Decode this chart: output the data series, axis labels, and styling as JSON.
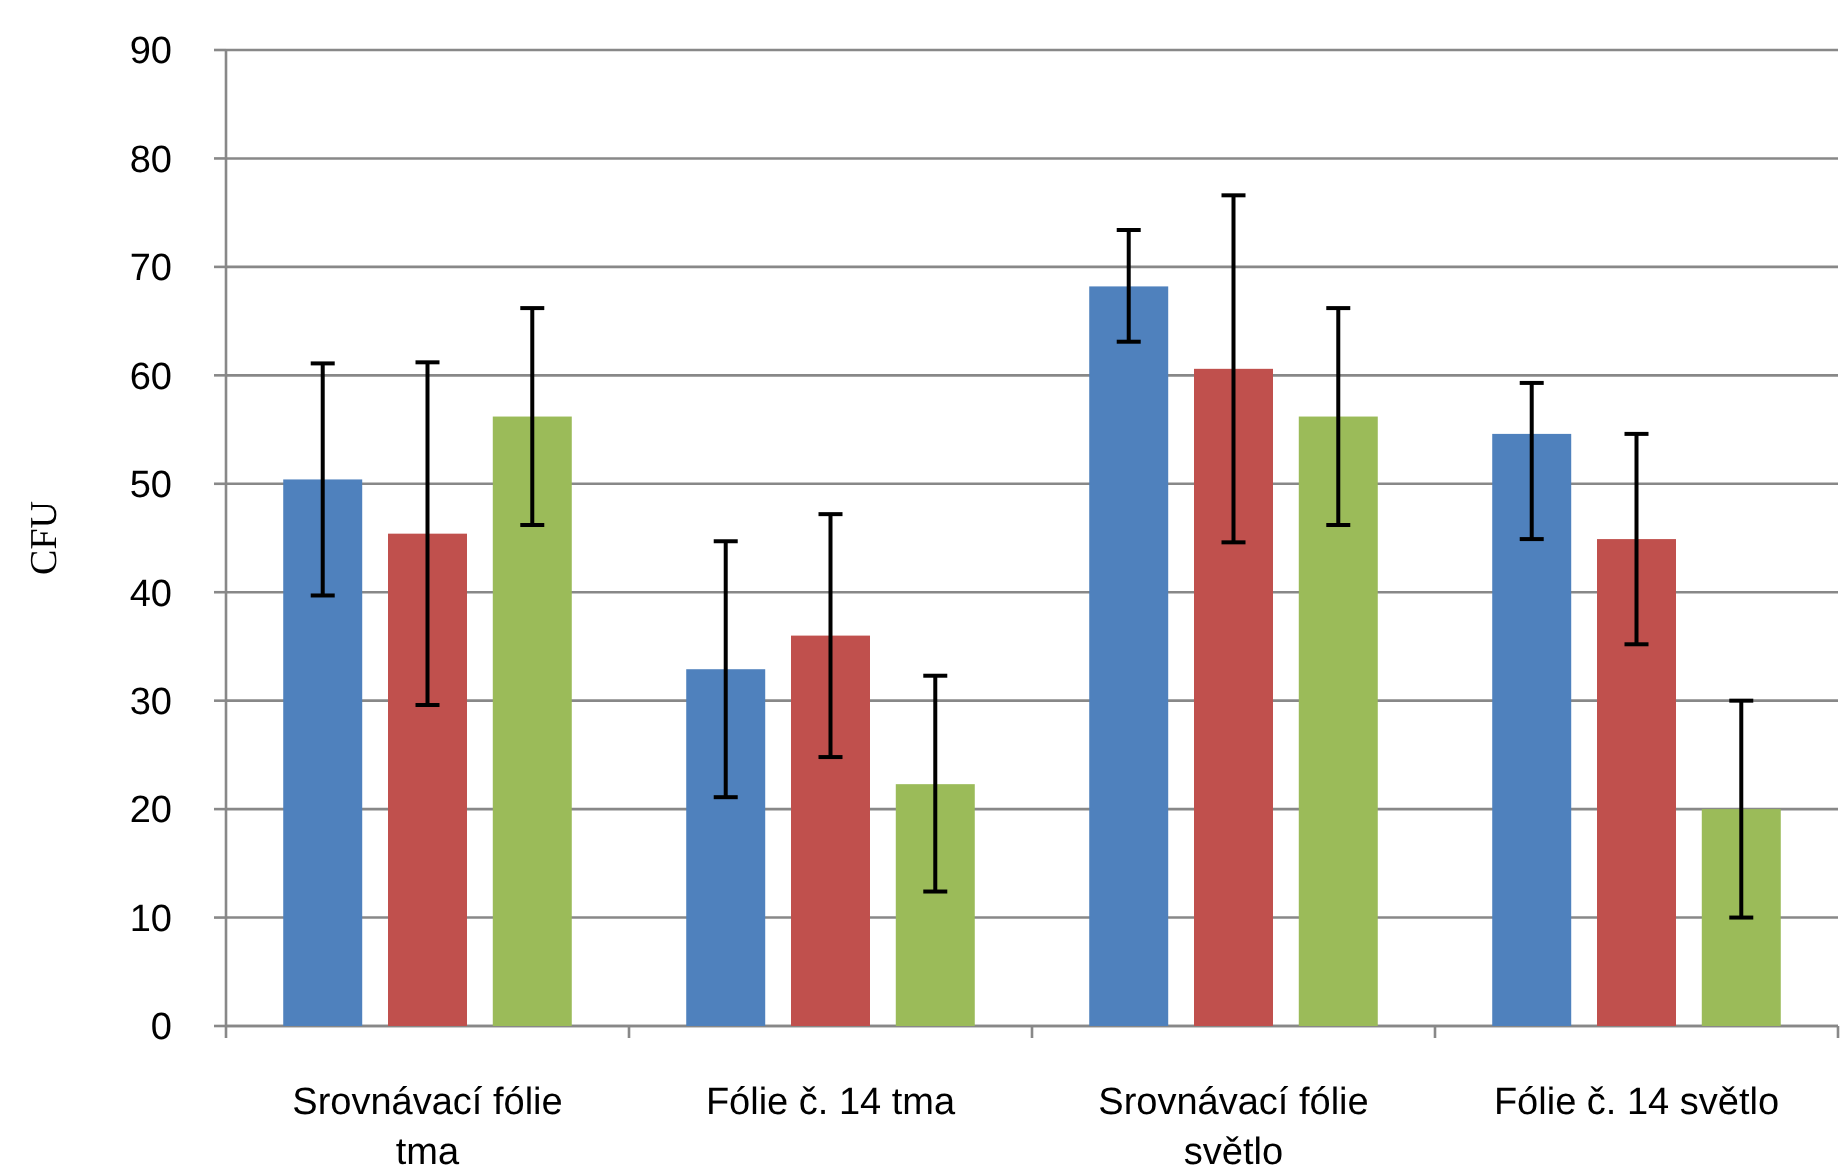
{
  "chart_data": {
    "type": "bar",
    "ylabel": "CFU",
    "categories": [
      "Srovnávací fólie tma",
      "Fólie č. 14 tma",
      "Srovnávací fólie světlo",
      "Fólie č. 14 světlo"
    ],
    "series": [
      {
        "color": "#4f81bd",
        "values": [
          50.4,
          32.9,
          68.2,
          54.6
        ],
        "errors": [
          [
            39.7,
            61.1
          ],
          [
            21.1,
            44.7
          ],
          [
            63.1,
            73.4
          ],
          [
            44.9,
            59.3
          ]
        ]
      },
      {
        "color": "#c0504d",
        "values": [
          45.4,
          36.0,
          60.6,
          44.9
        ],
        "errors": [
          [
            29.6,
            61.2
          ],
          [
            24.8,
            47.2
          ],
          [
            44.6,
            76.6
          ],
          [
            35.2,
            54.6
          ]
        ]
      },
      {
        "color": "#9bbb59",
        "values": [
          56.2,
          22.3,
          56.2,
          20.0
        ],
        "errors": [
          [
            46.2,
            66.2
          ],
          [
            12.4,
            32.3
          ],
          [
            46.2,
            66.2
          ],
          [
            10.0,
            30.0
          ]
        ]
      }
    ],
    "ylim": [
      0,
      90
    ],
    "yticks": [
      0,
      10,
      20,
      30,
      40,
      50,
      60,
      70,
      80,
      90
    ],
    "grid": "y"
  }
}
